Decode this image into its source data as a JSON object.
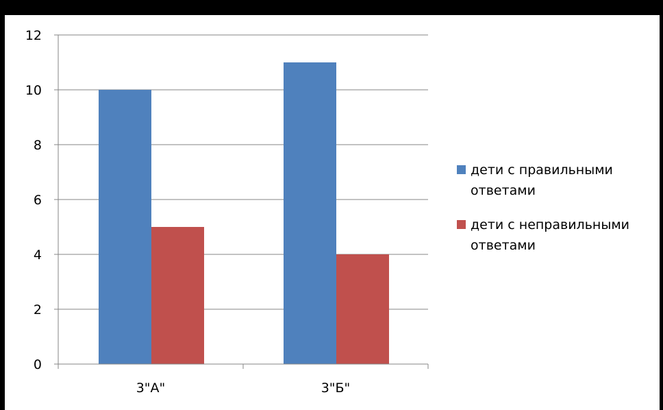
{
  "chart_data": {
    "type": "bar",
    "categories": [
      "3\"А\"",
      "3\"Б\""
    ],
    "series": [
      {
        "name": "дети с правильными ответами",
        "values": [
          10,
          11
        ],
        "color": "#4F81BD"
      },
      {
        "name": "дети с неправильными ответами",
        "values": [
          5,
          4
        ],
        "color": "#C0504D"
      }
    ],
    "ylim": [
      0,
      12
    ],
    "yticks": [
      0,
      2,
      4,
      6,
      8,
      10,
      12
    ],
    "grid": true,
    "legend": "right",
    "title": "",
    "xlabel": "",
    "ylabel": ""
  }
}
